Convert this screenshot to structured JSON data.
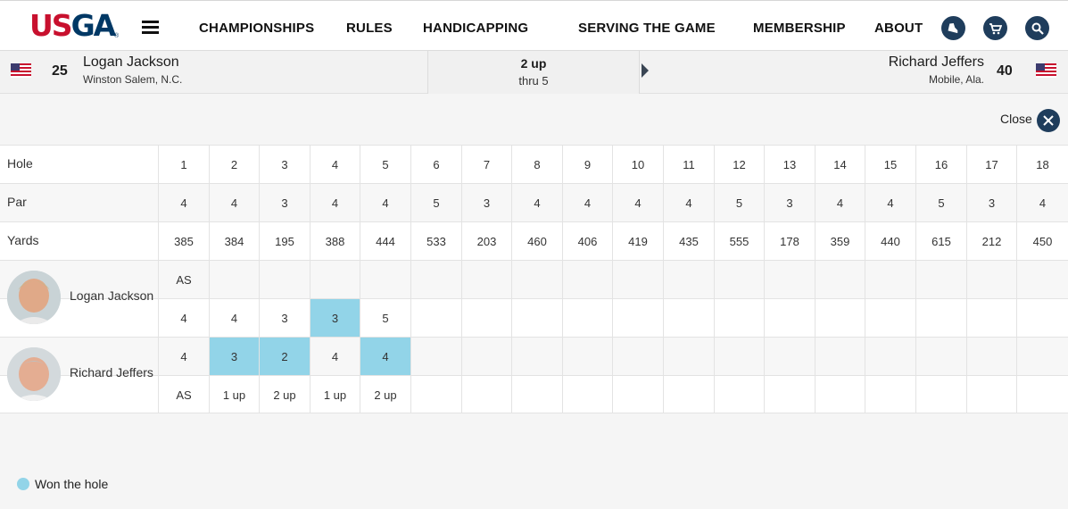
{
  "header": {
    "logo": "USGA",
    "nav": [
      "CHAMPIONSHIPS",
      "RULES",
      "HANDICAPPING",
      "SERVING THE GAME",
      "MEMBERSHIP",
      "ABOUT"
    ],
    "icons": [
      "shoe-icon",
      "cart-icon",
      "search-icon"
    ]
  },
  "match": {
    "player1": {
      "seed": "25",
      "name": "Logan Jackson",
      "location": "Winston Salem, N.C."
    },
    "player2": {
      "seed": "40",
      "name": "Richard Jeffers",
      "location": "Mobile, Ala."
    },
    "status": "2 up",
    "thru": "thru 5"
  },
  "close_label": "Close",
  "scorecard": {
    "labels": {
      "hole": "Hole",
      "par": "Par",
      "yards": "Yards"
    },
    "holes": [
      "1",
      "2",
      "3",
      "4",
      "5",
      "6",
      "7",
      "8",
      "9",
      "10",
      "11",
      "12",
      "13",
      "14",
      "15",
      "16",
      "17",
      "18"
    ],
    "par": [
      "4",
      "4",
      "3",
      "4",
      "4",
      "5",
      "3",
      "4",
      "4",
      "4",
      "4",
      "5",
      "3",
      "4",
      "4",
      "5",
      "3",
      "4"
    ],
    "yards": [
      "385",
      "384",
      "195",
      "388",
      "444",
      "533",
      "203",
      "460",
      "406",
      "419",
      "435",
      "555",
      "178",
      "359",
      "440",
      "615",
      "212",
      "450"
    ],
    "player1_status": [
      "AS",
      "",
      "",
      "",
      "",
      "",
      "",
      "",
      "",
      "",
      "",
      "",
      "",
      "",
      "",
      "",
      "",
      ""
    ],
    "player1_scores": [
      "4",
      "4",
      "3",
      "3",
      "5",
      "",
      "",
      "",
      "",
      "",
      "",
      "",
      "",
      "",
      "",
      "",
      "",
      ""
    ],
    "player1_won": [
      false,
      false,
      false,
      true,
      false,
      false,
      false,
      false,
      false,
      false,
      false,
      false,
      false,
      false,
      false,
      false,
      false,
      false
    ],
    "player2_scores": [
      "4",
      "3",
      "2",
      "4",
      "4",
      "",
      "",
      "",
      "",
      "",
      "",
      "",
      "",
      "",
      "",
      "",
      "",
      ""
    ],
    "player2_won": [
      false,
      true,
      true,
      false,
      true,
      false,
      false,
      false,
      false,
      false,
      false,
      false,
      false,
      false,
      false,
      false,
      false,
      false
    ],
    "player2_status": [
      "AS",
      "1 up",
      "2 up",
      "1 up",
      "2 up",
      "",
      "",
      "",
      "",
      "",
      "",
      "",
      "",
      "",
      "",
      "",
      "",
      ""
    ]
  },
  "legend": {
    "won_label": "Won the hole",
    "won_color": "#92d4e8"
  },
  "colors": {
    "brand_red": "#c8102e",
    "brand_navy": "#003865",
    "button_navy": "#1f3d5c"
  }
}
